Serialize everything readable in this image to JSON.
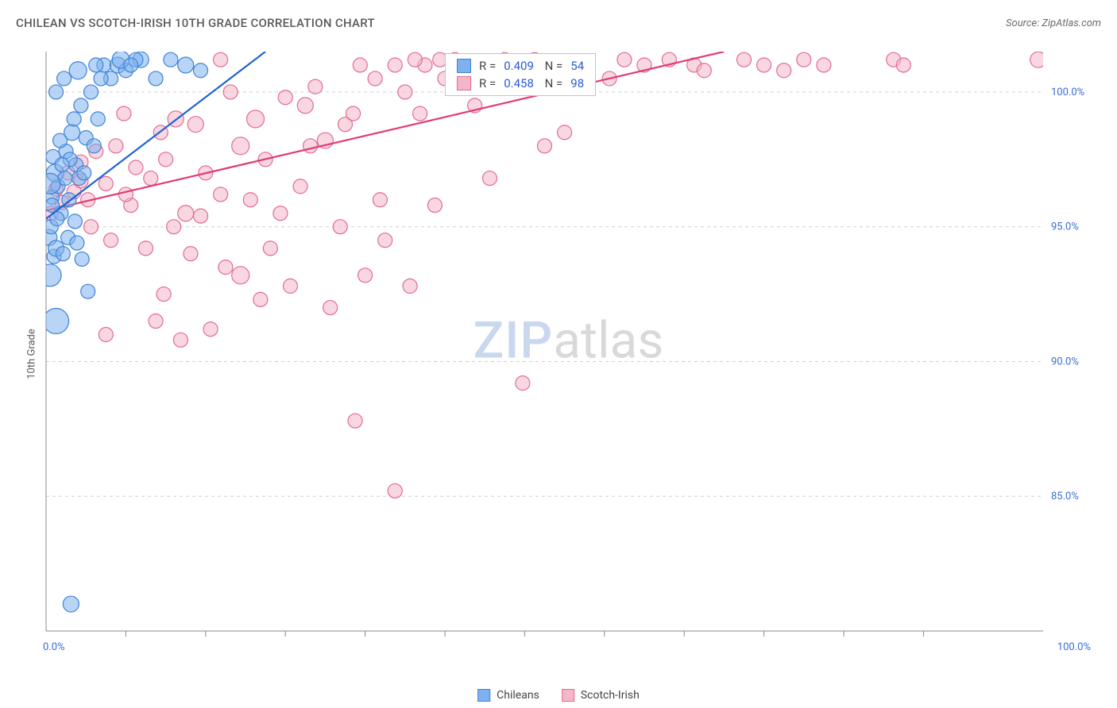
{
  "title": "CHILEAN VS SCOTCH-IRISH 10TH GRADE CORRELATION CHART",
  "source": "Source: ZipAtlas.com",
  "ylabel": "10th Grade",
  "watermark": {
    "zip": "ZIP",
    "atlas": "atlas"
  },
  "chart": {
    "type": "scatter",
    "xlim": [
      0,
      100
    ],
    "ylim": [
      80,
      101.5
    ],
    "yticks": [
      85.0,
      90.0,
      95.0,
      100.0
    ],
    "xticks_major": [
      0,
      100
    ],
    "xticks_minor": [
      8,
      16,
      24,
      32,
      40,
      48,
      56,
      64,
      72,
      80,
      88
    ],
    "grid_color": "#d0d0d0",
    "axis_text_color": "#3a6dd6",
    "background_color": "#ffffff",
    "marker_opacity": 0.55,
    "marker_stroke_width": 1.2,
    "marker_default_r": 9,
    "trendline_width": 2.2,
    "series": {
      "chileans": {
        "label": "Chileans",
        "fill": "#7eb1ee",
        "stroke": "#3e83d6",
        "trend_color": "#1e62d6",
        "trend": {
          "x1": 0,
          "y1": 95.3,
          "x2": 22,
          "y2": 101.5
        },
        "stats": {
          "R": "0.409",
          "N": "54"
        },
        "points": [
          [
            0.3,
            94.6,
            10
          ],
          [
            0.5,
            95.0,
            9
          ],
          [
            0.8,
            93.9,
            9
          ],
          [
            0.6,
            96.1,
            9
          ],
          [
            1.0,
            94.2,
            10
          ],
          [
            1.2,
            96.5,
            9
          ],
          [
            1.5,
            95.5,
            9
          ],
          [
            0.9,
            97.0,
            11
          ],
          [
            1.7,
            94.0,
            9
          ],
          [
            2.0,
            97.8,
            9
          ],
          [
            1.4,
            98.2,
            9
          ],
          [
            2.3,
            96.0,
            9
          ],
          [
            2.6,
            98.5,
            10
          ],
          [
            3.0,
            97.3,
            9
          ],
          [
            2.8,
            99.0,
            9
          ],
          [
            3.3,
            96.8,
            9
          ],
          [
            3.5,
            99.5,
            9
          ],
          [
            4.0,
            98.3,
            9
          ],
          [
            1.0,
            100.0,
            9
          ],
          [
            1.8,
            100.5,
            9
          ],
          [
            3.2,
            100.8,
            11
          ],
          [
            4.5,
            100.0,
            9
          ],
          [
            5.2,
            99.0,
            9
          ],
          [
            5.8,
            101.0,
            9
          ],
          [
            6.5,
            100.5,
            9
          ],
          [
            7.2,
            101.0,
            10
          ],
          [
            8.0,
            100.8,
            9
          ],
          [
            9.5,
            101.2,
            10
          ],
          [
            11.0,
            100.5,
            9
          ],
          [
            12.5,
            101.2,
            9
          ],
          [
            14.0,
            101.0,
            10
          ],
          [
            15.5,
            100.8,
            9
          ],
          [
            0.6,
            95.8,
            9
          ],
          [
            1.1,
            95.3,
            9
          ],
          [
            1.9,
            96.8,
            9
          ],
          [
            2.4,
            97.5,
            9
          ],
          [
            0.4,
            96.6,
            13
          ],
          [
            3.8,
            97.0,
            9
          ],
          [
            4.8,
            98.0,
            9
          ],
          [
            7.5,
            101.2,
            11
          ],
          [
            2.2,
            94.6,
            9
          ],
          [
            3.6,
            93.8,
            9
          ],
          [
            4.2,
            92.6,
            9
          ],
          [
            5.0,
            101.0,
            9
          ],
          [
            9.0,
            101.2,
            9
          ],
          [
            0.7,
            97.6,
            9
          ],
          [
            1.6,
            97.3,
            9
          ],
          [
            2.9,
            95.2,
            9
          ],
          [
            3.1,
            94.4,
            9
          ],
          [
            5.5,
            100.5,
            9
          ],
          [
            8.5,
            101.0,
            9
          ],
          [
            0.4,
            93.2,
            14
          ],
          [
            2.5,
            81.0,
            10
          ],
          [
            1.0,
            91.5,
            16
          ]
        ]
      },
      "scotchirish": {
        "label": "Scotch-Irish",
        "fill": "#f4b7c8",
        "stroke": "#e36a92",
        "trend_color": "#e23a72",
        "trend": {
          "x1": 0,
          "y1": 95.6,
          "x2": 68,
          "y2": 101.5
        },
        "stats": {
          "R": "0.458",
          "N": "98"
        },
        "points": [
          [
            0.5,
            95.5,
            9
          ],
          [
            1.0,
            96.4,
            9
          ],
          [
            1.6,
            95.9,
            9
          ],
          [
            2.2,
            97.0,
            9
          ],
          [
            2.8,
            96.3,
            9
          ],
          [
            3.5,
            97.4,
            9
          ],
          [
            4.2,
            96.0,
            9
          ],
          [
            5.0,
            97.8,
            9
          ],
          [
            6.0,
            96.6,
            9
          ],
          [
            7.0,
            98.0,
            9
          ],
          [
            7.8,
            99.2,
            9
          ],
          [
            9.0,
            97.2,
            9
          ],
          [
            10.5,
            96.8,
            9
          ],
          [
            11.5,
            98.5,
            9
          ],
          [
            12.0,
            97.5,
            9
          ],
          [
            13.0,
            99.0,
            10
          ],
          [
            14.0,
            95.5,
            10
          ],
          [
            15.0,
            98.8,
            10
          ],
          [
            16.0,
            97.0,
            9
          ],
          [
            17.5,
            96.2,
            9
          ],
          [
            18.5,
            100.0,
            9
          ],
          [
            19.5,
            98.0,
            11
          ],
          [
            21.0,
            99.0,
            11
          ],
          [
            22.0,
            97.5,
            9
          ],
          [
            17.5,
            101.2,
            9
          ],
          [
            24.0,
            99.8,
            9
          ],
          [
            25.5,
            96.5,
            9
          ],
          [
            27.0,
            100.2,
            9
          ],
          [
            28.0,
            98.2,
            10
          ],
          [
            30.0,
            98.8,
            9
          ],
          [
            31.5,
            101.0,
            9
          ],
          [
            33.0,
            100.5,
            9
          ],
          [
            26.0,
            99.5,
            10
          ],
          [
            35.0,
            101.0,
            9
          ],
          [
            36.0,
            100.0,
            9
          ],
          [
            37.5,
            99.2,
            9
          ],
          [
            38.0,
            101.0,
            9
          ],
          [
            39.5,
            101.2,
            9
          ],
          [
            40.0,
            100.5,
            9
          ],
          [
            41.0,
            101.2,
            9
          ],
          [
            42.5,
            101.0,
            9
          ],
          [
            44.0,
            100.8,
            9
          ],
          [
            46.0,
            101.2,
            9
          ],
          [
            48.0,
            100.5,
            9
          ],
          [
            49.0,
            101.2,
            9
          ],
          [
            52.0,
            98.5,
            9
          ],
          [
            54.0,
            101.0,
            9
          ],
          [
            56.5,
            100.5,
            9
          ],
          [
            58.0,
            101.2,
            9
          ],
          [
            60.0,
            101.0,
            9
          ],
          [
            62.5,
            101.2,
            9
          ],
          [
            65.0,
            101.0,
            9
          ],
          [
            66.0,
            100.8,
            9
          ],
          [
            70.0,
            101.2,
            9
          ],
          [
            72.0,
            101.0,
            9
          ],
          [
            74.0,
            100.8,
            9
          ],
          [
            76.0,
            101.2,
            9
          ],
          [
            78.0,
            101.0,
            9
          ],
          [
            85.0,
            101.2,
            9
          ],
          [
            86.0,
            101.0,
            9
          ],
          [
            99.5,
            101.2,
            10
          ],
          [
            4.5,
            95.0,
            9
          ],
          [
            6.5,
            94.5,
            9
          ],
          [
            8.5,
            95.8,
            9
          ],
          [
            10.0,
            94.2,
            9
          ],
          [
            12.8,
            95.0,
            9
          ],
          [
            14.5,
            94.0,
            9
          ],
          [
            11.8,
            92.5,
            9
          ],
          [
            18.0,
            93.5,
            9
          ],
          [
            22.5,
            94.2,
            9
          ],
          [
            24.5,
            92.8,
            9
          ],
          [
            28.5,
            92.0,
            9
          ],
          [
            32.0,
            93.2,
            9
          ],
          [
            36.5,
            92.8,
            9
          ],
          [
            39.0,
            95.8,
            9
          ],
          [
            47.8,
            89.2,
            9
          ],
          [
            50.0,
            98.0,
            9
          ],
          [
            13.5,
            90.8,
            9
          ],
          [
            21.5,
            92.3,
            9
          ],
          [
            11.0,
            91.5,
            9
          ],
          [
            6.0,
            91.0,
            9
          ],
          [
            31.0,
            87.8,
            9
          ],
          [
            16.5,
            91.2,
            9
          ],
          [
            35.0,
            85.2,
            9
          ],
          [
            19.5,
            93.2,
            11
          ],
          [
            23.5,
            95.5,
            9
          ],
          [
            29.5,
            95.0,
            9
          ],
          [
            33.5,
            96.0,
            9
          ],
          [
            34.0,
            94.5,
            9
          ],
          [
            44.5,
            96.8,
            9
          ],
          [
            37.0,
            101.2,
            9
          ],
          [
            3.5,
            96.7,
            9
          ],
          [
            8.0,
            96.2,
            9
          ],
          [
            15.5,
            95.4,
            9
          ],
          [
            20.5,
            96.0,
            9
          ],
          [
            26.5,
            98.0,
            9
          ],
          [
            30.8,
            99.2,
            9
          ],
          [
            43.0,
            99.5,
            9
          ]
        ]
      }
    }
  },
  "legend": {
    "series1": "Chileans",
    "series2": "Scotch-Irish"
  },
  "tick_format": {
    "y85": "85.0%",
    "y90": "90.0%",
    "y95": "95.0%",
    "y100": "100.0%",
    "x0": "0.0%",
    "x100": "100.0%"
  }
}
